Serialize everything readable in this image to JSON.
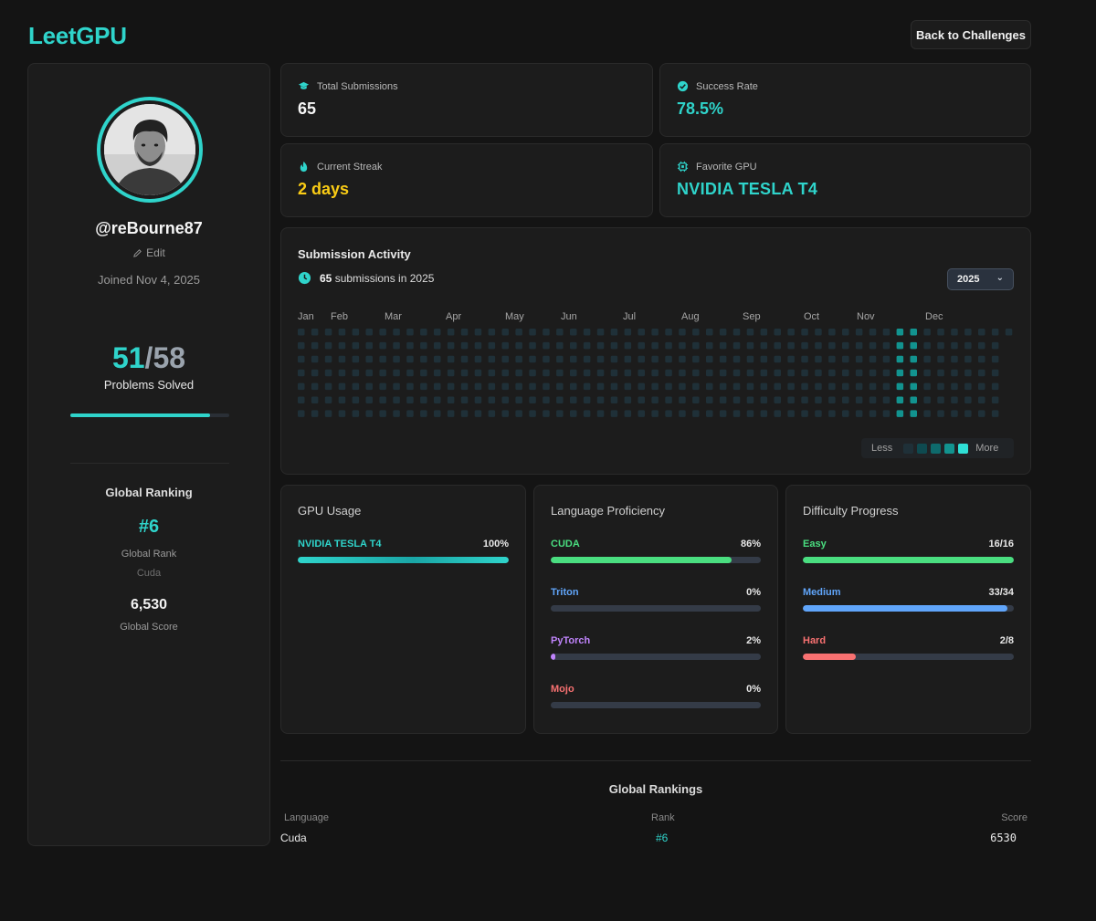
{
  "app": {
    "logo": "LeetGPU",
    "back_label": "Back to Challenges"
  },
  "profile": {
    "username": "@reBourne87",
    "edit_label": "Edit",
    "joined": "Joined Nov 4, 2025",
    "solved": "51",
    "total": "58",
    "solved_label": "Problems Solved",
    "solved_fraction": 0.879,
    "ranking_title": "Global Ranking",
    "rank": "#6",
    "rank_label": "Global Rank",
    "rank_language": "Cuda",
    "score": "6,530",
    "score_label": "Global Score"
  },
  "stats": {
    "total_submissions": {
      "label": "Total Submissions",
      "value": "65",
      "icon": "graduation-cap-icon"
    },
    "success_rate": {
      "label": "Success Rate",
      "value": "78.5%",
      "icon": "check-circle-icon"
    },
    "current_streak": {
      "label": "Current Streak",
      "value": "2 days",
      "icon": "flame-icon"
    },
    "favorite_gpu": {
      "label": "Favorite GPU",
      "value": "NVIDIA TESLA T4",
      "icon": "chip-icon"
    }
  },
  "activity": {
    "title": "Submission Activity",
    "count": "65",
    "count_suffix": "submissions in 2025",
    "year": "2025",
    "months": [
      "Jan",
      "Feb",
      "Mar",
      "Apr",
      "May",
      "Jun",
      "Jul",
      "Aug",
      "Sep",
      "Oct",
      "Nov",
      "Dec"
    ],
    "legend_less": "Less",
    "legend_more": "More",
    "level_colors": [
      "#1f3038",
      "#0e4a50",
      "#0e6a6c",
      "#12938f",
      "#2fe0d6"
    ],
    "active_cells": [
      {
        "week": 44,
        "day": 0,
        "level": 3
      },
      {
        "week": 44,
        "day": 1,
        "level": 3
      },
      {
        "week": 44,
        "day": 2,
        "level": 3
      },
      {
        "week": 44,
        "day": 3,
        "level": 3
      },
      {
        "week": 44,
        "day": 4,
        "level": 3
      },
      {
        "week": 44,
        "day": 5,
        "level": 3
      },
      {
        "week": 44,
        "day": 6,
        "level": 3
      },
      {
        "week": 45,
        "day": 0,
        "level": 3
      },
      {
        "week": 45,
        "day": 1,
        "level": 3
      },
      {
        "week": 45,
        "day": 2,
        "level": 3
      },
      {
        "week": 45,
        "day": 3,
        "level": 3
      },
      {
        "week": 45,
        "day": 4,
        "level": 3
      },
      {
        "week": 45,
        "day": 5,
        "level": 3
      },
      {
        "week": 45,
        "day": 6,
        "level": 3
      }
    ]
  },
  "gpu_usage": {
    "title": "GPU Usage",
    "items": [
      {
        "name": "NVIDIA TESLA T4",
        "percent": "100%",
        "value": 100,
        "color": "#2fd4cb"
      }
    ]
  },
  "language": {
    "title": "Language Proficiency",
    "items": [
      {
        "name": "CUDA",
        "percent": "86%",
        "value": 86,
        "color": "#4ade80"
      },
      {
        "name": "Triton",
        "percent": "0%",
        "value": 0,
        "color": "#60a5fa"
      },
      {
        "name": "PyTorch",
        "percent": "2%",
        "value": 2,
        "color": "#c084fc"
      },
      {
        "name": "Mojo",
        "percent": "0%",
        "value": 0,
        "color": "#f87171"
      }
    ]
  },
  "difficulty": {
    "title": "Difficulty Progress",
    "items": [
      {
        "name": "Easy",
        "percent": "16/16",
        "value": 100,
        "color": "#4ade80"
      },
      {
        "name": "Medium",
        "percent": "33/34",
        "value": 97,
        "color": "#60a5fa"
      },
      {
        "name": "Hard",
        "percent": "2/8",
        "value": 25,
        "color": "#f87171"
      }
    ]
  },
  "rankings": {
    "title": "Global Rankings",
    "headers": {
      "language": "Language",
      "rank": "Rank",
      "score": "Score"
    },
    "rows": [
      {
        "language": "Cuda",
        "rank": "#6",
        "score": "6530"
      }
    ]
  }
}
